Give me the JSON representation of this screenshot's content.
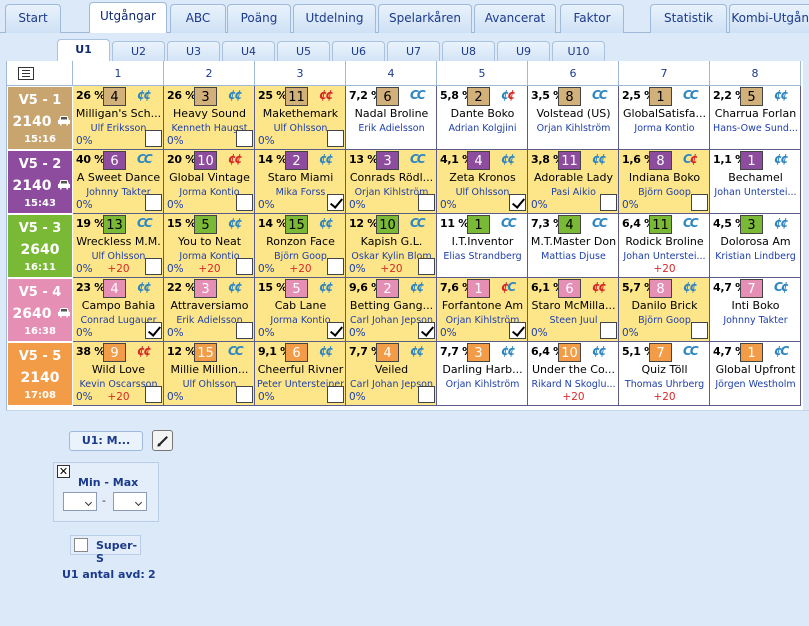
{
  "tabs": [
    "Start",
    "Utgångar",
    "ABC",
    "Poäng",
    "Utdelning",
    "Spelarkåren",
    "Avancerat",
    "Faktor",
    "Statistik",
    "Kombi-Utgång"
  ],
  "active_tab": 1,
  "subtabs": [
    "U1",
    "U2",
    "U3",
    "U4",
    "U5",
    "U6",
    "U7",
    "U8",
    "U9",
    "U10"
  ],
  "active_subtab": 0,
  "columns": [
    "1",
    "2",
    "3",
    "4",
    "5",
    "6",
    "7",
    "8"
  ],
  "colors": {
    "race1": "#c8a46e",
    "race2": "#8e4c9e",
    "race3": "#7ab935",
    "race4": "#e68fb4",
    "race5": "#f39c47",
    "num_tan": "#d2b07a",
    "num_purple": "#8e4c9e",
    "num_green": "#7ab935",
    "num_pink": "#e68fb4",
    "num_orange": "#f39c47",
    "selected_bg": "#fde68a"
  },
  "races": [
    {
      "label": "V5 - 1",
      "distance": "2140",
      "time": "15:16",
      "start": "car-icon",
      "color": "race1",
      "numcolor": "num_tan",
      "numtext": "dark",
      "horses": [
        {
          "pct": "26 %",
          "num": "4",
          "shoe": [
            "a",
            "a"
          ],
          "name": "Milligan's Sch...",
          "driver": "Ulf Eriksson",
          "win": "0%",
          "extra": "",
          "checked": false,
          "sel": true
        },
        {
          "pct": "26 %",
          "num": "3",
          "shoe": [
            "a",
            "a"
          ],
          "name": "Heavy Sound",
          "driver": "Kenneth Haugst",
          "win": "0%",
          "extra": "",
          "checked": false,
          "sel": true
        },
        {
          "pct": "25 %",
          "num": "11",
          "shoe": [
            "r",
            "r"
          ],
          "name": "Makethemark",
          "driver": "Ulf Ohlsson",
          "win": "0%",
          "extra": "",
          "checked": false,
          "sel": true
        },
        {
          "pct": "7,2 %",
          "num": "6",
          "shoe": [
            "A",
            "C"
          ],
          "name": "Nadal Broline",
          "driver": "Erik Adielsson",
          "win": "",
          "extra": "",
          "checked": false,
          "sel": false
        },
        {
          "pct": "5,8 %",
          "num": "2",
          "shoe": [
            "a",
            "r"
          ],
          "name": "Dante Boko",
          "driver": "Adrian Kolgjini",
          "win": "",
          "extra": "",
          "checked": false,
          "sel": false
        },
        {
          "pct": "3,5 %",
          "num": "8",
          "shoe": [
            "A",
            "C"
          ],
          "name": "Volstead (US)",
          "driver": "Örjan Kihlström",
          "win": "",
          "extra": "",
          "checked": false,
          "sel": false
        },
        {
          "pct": "2,5 %",
          "num": "1",
          "shoe": [
            "A",
            "C"
          ],
          "name": "GlobalSatisfa...",
          "driver": "Jorma Kontio",
          "win": "",
          "extra": "",
          "checked": false,
          "sel": false
        },
        {
          "pct": "2,2 %",
          "num": "5",
          "shoe": [
            "a",
            "a"
          ],
          "name": "Charrua Forlan",
          "driver": "Hans-Owe Sund...",
          "win": "",
          "extra": "",
          "checked": false,
          "sel": false
        }
      ]
    },
    {
      "label": "V5 - 2",
      "distance": "2140",
      "time": "15:43",
      "start": "car-icon",
      "color": "race2",
      "numcolor": "num_purple",
      "numtext": "light",
      "horses": [
        {
          "pct": "40 %",
          "num": "6",
          "shoe": [
            "C",
            "C"
          ],
          "name": "A Sweet Dance",
          "driver": "Johnny Takter",
          "win": "0%",
          "extra": "",
          "checked": false,
          "sel": true
        },
        {
          "pct": "20 %",
          "num": "10",
          "shoe": [
            "r",
            "r"
          ],
          "name": "Global Vintage",
          "driver": "Jorma Kontio",
          "win": "0%",
          "extra": "",
          "checked": false,
          "sel": true
        },
        {
          "pct": "14 %",
          "num": "2",
          "shoe": [
            "a",
            "a"
          ],
          "name": "Staro Miami",
          "driver": "Mika Forss",
          "win": "0%",
          "extra": "",
          "checked": true,
          "sel": true
        },
        {
          "pct": "13 %",
          "num": "3",
          "shoe": [
            "A",
            "C"
          ],
          "name": "Conrads Rödl...",
          "driver": "Örjan Kihlström",
          "win": "0%",
          "extra": "",
          "checked": false,
          "sel": true
        },
        {
          "pct": "4,1 %",
          "num": "4",
          "shoe": [
            "a",
            "a"
          ],
          "name": "Zeta Kronos",
          "driver": "Ulf Ohlsson",
          "win": "0%",
          "extra": "",
          "checked": true,
          "sel": true
        },
        {
          "pct": "3,8 %",
          "num": "11",
          "shoe": [
            "a",
            "a"
          ],
          "name": "Adorable Lady",
          "driver": "Pasi Aikio",
          "win": "0%",
          "extra": "",
          "checked": false,
          "sel": true
        },
        {
          "pct": "1,6 %",
          "num": "8",
          "shoe": [
            "A",
            "r"
          ],
          "name": "Indiana Boko",
          "driver": "Björn Goop",
          "win": "0%",
          "extra": "",
          "checked": false,
          "sel": true
        },
        {
          "pct": "1,1 %",
          "num": "1",
          "shoe": [
            "a",
            "a"
          ],
          "name": "Bechamel",
          "driver": "Johan Unterstei...",
          "win": "",
          "extra": "",
          "checked": false,
          "sel": false
        }
      ]
    },
    {
      "label": "V5 - 3",
      "distance": "2640",
      "time": "16:11",
      "start": "",
      "color": "race3",
      "numcolor": "num_green",
      "numtext": "dark",
      "horses": [
        {
          "pct": "19 %",
          "num": "13",
          "shoe": [
            "C",
            "C"
          ],
          "name": "Wreckless M.M.",
          "driver": "Ulf Ohlsson",
          "win": "0%",
          "extra": "+20",
          "checked": false,
          "sel": true
        },
        {
          "pct": "15 %",
          "num": "5",
          "shoe": [
            "a",
            "a"
          ],
          "name": "You to Neat",
          "driver": "Jorma Kontio",
          "win": "0%",
          "extra": "+20",
          "checked": false,
          "sel": true
        },
        {
          "pct": "14 %",
          "num": "15",
          "shoe": [
            "a",
            "a"
          ],
          "name": "Ronzon Face",
          "driver": "Björn Goop",
          "win": "0%",
          "extra": "+20",
          "checked": false,
          "sel": true
        },
        {
          "pct": "12 %",
          "num": "10",
          "shoe": [
            "A",
            "C"
          ],
          "name": "Kapish G.L.",
          "driver": "Oskar Kylin Blom",
          "win": "0%",
          "extra": "+20",
          "checked": false,
          "sel": true
        },
        {
          "pct": "11 %",
          "num": "1",
          "shoe": [
            "C",
            "C"
          ],
          "name": "I.T.Inventor",
          "driver": "Elias Strandberg",
          "win": "",
          "extra": "",
          "checked": false,
          "sel": false
        },
        {
          "pct": "7,3 %",
          "num": "4",
          "shoe": [
            "A",
            "C"
          ],
          "name": "M.T.Master Don",
          "driver": "Mattias Djuse",
          "win": "",
          "extra": "",
          "checked": false,
          "sel": false
        },
        {
          "pct": "6,4 %",
          "num": "11",
          "shoe": [
            "C",
            "C"
          ],
          "name": "Rodick Broline",
          "driver": "Johan Unterstei...",
          "win": "",
          "extra": "+20",
          "checked": false,
          "sel": false
        },
        {
          "pct": "4,5 %",
          "num": "3",
          "shoe": [
            "a",
            "a"
          ],
          "name": "Dolorosa Am",
          "driver": "Kristian Lindberg",
          "win": "",
          "extra": "",
          "checked": false,
          "sel": false
        }
      ]
    },
    {
      "label": "V5 - 4",
      "distance": "2640",
      "time": "16:38",
      "start": "car-icon",
      "color": "race4",
      "numcolor": "num_pink",
      "numtext": "light",
      "horses": [
        {
          "pct": "23 %",
          "num": "4",
          "shoe": [
            "a",
            "a"
          ],
          "name": "Campo Bahia",
          "driver": "Conrad Lugauer",
          "win": "0%",
          "extra": "",
          "checked": true,
          "sel": true
        },
        {
          "pct": "22 %",
          "num": "3",
          "shoe": [
            "a",
            "a"
          ],
          "name": "Attraversiamo",
          "driver": "Erik Adielsson",
          "win": "0%",
          "extra": "",
          "checked": false,
          "sel": true
        },
        {
          "pct": "15 %",
          "num": "5",
          "shoe": [
            "a",
            "a"
          ],
          "name": "Cab Lane",
          "driver": "Jorma Kontio",
          "win": "0%",
          "extra": "",
          "checked": true,
          "sel": true
        },
        {
          "pct": "9,6 %",
          "num": "2",
          "shoe": [
            "a",
            "a"
          ],
          "name": "Betting Gang...",
          "driver": "Carl Johan Jepson",
          "win": "0%",
          "extra": "",
          "checked": true,
          "sel": true
        },
        {
          "pct": "7,6 %",
          "num": "1",
          "shoe": [
            "r",
            "C"
          ],
          "name": "Forfantone Am",
          "driver": "Örjan Kihlström",
          "win": "0%",
          "extra": "",
          "checked": true,
          "sel": true
        },
        {
          "pct": "6,1 %",
          "num": "6",
          "shoe": [
            "r",
            "r"
          ],
          "name": "Staro McMilla...",
          "driver": "Steen Juul",
          "win": "0%",
          "extra": "",
          "checked": false,
          "sel": true
        },
        {
          "pct": "5,7 %",
          "num": "8",
          "shoe": [
            "a",
            "a"
          ],
          "name": "Danilo Brick",
          "driver": "Björn Goop",
          "win": "0%",
          "extra": "",
          "checked": false,
          "sel": true
        },
        {
          "pct": "4,7 %",
          "num": "7",
          "shoe": [
            "C",
            "a"
          ],
          "name": "Inti Boko",
          "driver": "Johnny Takter",
          "win": "",
          "extra": "",
          "checked": false,
          "sel": false
        }
      ]
    },
    {
      "label": "V5 - 5",
      "distance": "2140",
      "time": "17:08",
      "start": "",
      "color": "race5",
      "numcolor": "num_orange",
      "numtext": "light",
      "horses": [
        {
          "pct": "38 %",
          "num": "9",
          "shoe": [
            "r",
            "r"
          ],
          "name": "Wild Love",
          "driver": "Kevin Oscarsson",
          "win": "0%",
          "extra": "+20",
          "checked": false,
          "sel": true
        },
        {
          "pct": "12 %",
          "num": "15",
          "shoe": [
            "C",
            "C"
          ],
          "name": "Millie Million...",
          "driver": "Ulf Ohlsson",
          "win": "0%",
          "extra": "",
          "checked": false,
          "sel": true
        },
        {
          "pct": "9,1 %",
          "num": "6",
          "shoe": [
            "a",
            "a"
          ],
          "name": "Cheerful Rivner",
          "driver": "Peter Untersteiner",
          "win": "0%",
          "extra": "",
          "checked": false,
          "sel": true
        },
        {
          "pct": "7,7 %",
          "num": "4",
          "shoe": [
            "a",
            "a"
          ],
          "name": "Veiled",
          "driver": "Carl Johan Jepson",
          "win": "0%",
          "extra": "",
          "checked": false,
          "sel": true
        },
        {
          "pct": "7,7 %",
          "num": "3",
          "shoe": [
            "a",
            "a"
          ],
          "name": "Darling Harb...",
          "driver": "Örjan Kihlström",
          "win": "",
          "extra": "",
          "checked": false,
          "sel": false
        },
        {
          "pct": "6,4 %",
          "num": "10",
          "shoe": [
            "a",
            "a"
          ],
          "name": "Under the Co...",
          "driver": "Rikard N Skoglu...",
          "win": "",
          "extra": "+20",
          "checked": false,
          "sel": false
        },
        {
          "pct": "5,1 %",
          "num": "7",
          "shoe": [
            "A",
            "C"
          ],
          "name": "Quiz Töll",
          "driver": "Thomas Uhrberg",
          "win": "",
          "extra": "+20",
          "checked": false,
          "sel": false
        },
        {
          "pct": "4,7 %",
          "num": "1",
          "shoe": [
            "a",
            "C"
          ],
          "name": "Global Upfront",
          "driver": "Jörgen Westholm",
          "win": "",
          "extra": "",
          "checked": false,
          "sel": false
        }
      ]
    }
  ],
  "bottom": {
    "u1_button": "U1: M...",
    "close_label": "✕",
    "minmax_label": "Min - Max",
    "dash": "-",
    "supers_label": "Super-S",
    "avd_label": "U1 antal avd:",
    "avd_value": "2"
  }
}
